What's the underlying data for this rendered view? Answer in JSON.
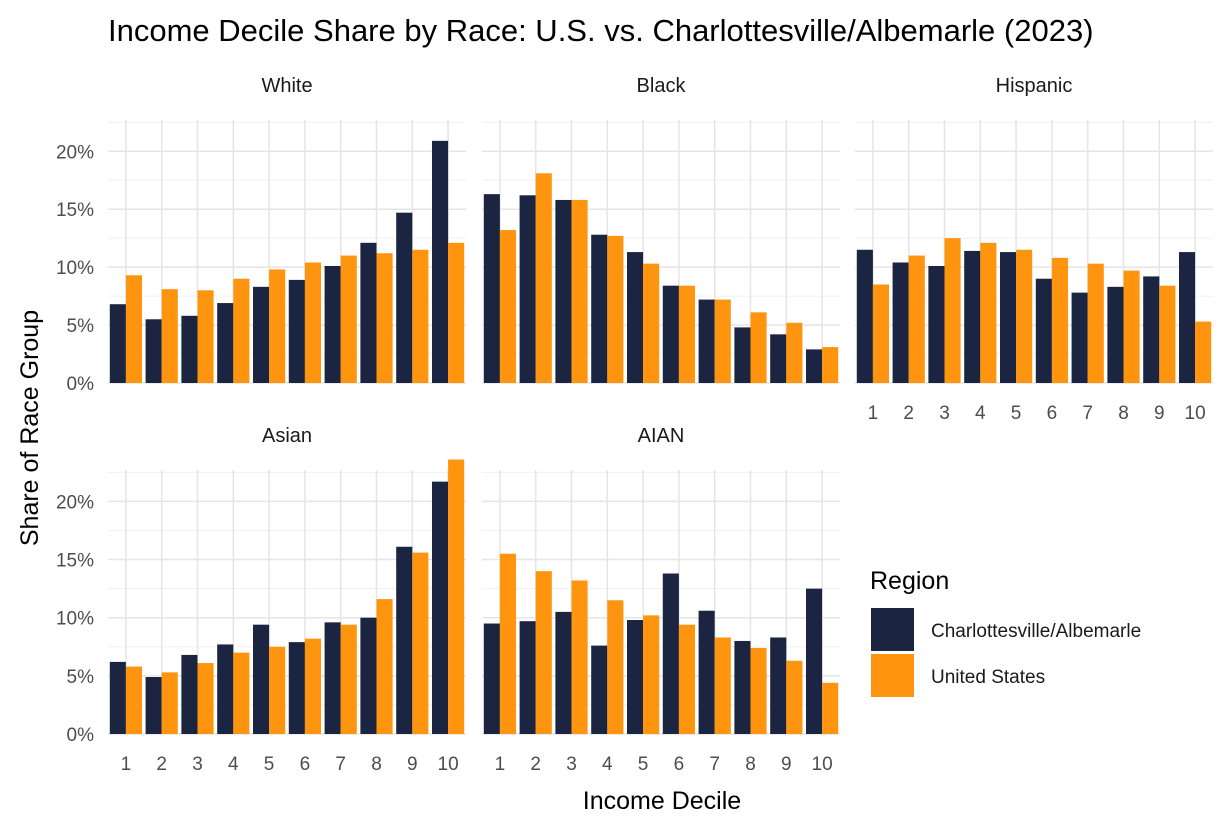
{
  "chart_data": {
    "type": "bar",
    "title": "Income Decile Share by Race: U.S. vs. Charlottesville/Albemarle (2023)",
    "xlabel": "Income Decile",
    "ylabel": "Share of Race Group",
    "categories": [
      "1",
      "2",
      "3",
      "4",
      "5",
      "6",
      "7",
      "8",
      "9",
      "10"
    ],
    "y_ticks": [
      "0%",
      "5%",
      "10%",
      "15%",
      "20%"
    ],
    "y_tick_values": [
      0,
      5,
      10,
      15,
      20
    ],
    "ylim": [
      0,
      22.7
    ],
    "grid": true,
    "legend": {
      "title": "Region",
      "position": "right",
      "entries": [
        {
          "label": "Charlottesville/Albemarle",
          "color": "#1b2440"
        },
        {
          "label": "United States",
          "color": "#ff950e"
        }
      ]
    },
    "panels": [
      {
        "name": "White",
        "series": [
          {
            "name": "Charlottesville/Albemarle",
            "values": [
              6.8,
              5.5,
              5.8,
              6.9,
              8.3,
              8.9,
              10.1,
              12.1,
              14.7,
              20.9
            ]
          },
          {
            "name": "United States",
            "values": [
              9.3,
              8.1,
              8.0,
              9.0,
              9.8,
              10.4,
              11.0,
              11.2,
              11.5,
              12.1
            ]
          }
        ]
      },
      {
        "name": "Black",
        "series": [
          {
            "name": "Charlottesville/Albemarle",
            "values": [
              16.3,
              16.2,
              15.8,
              12.8,
              11.3,
              8.4,
              7.2,
              4.8,
              4.2,
              2.9
            ]
          },
          {
            "name": "United States",
            "values": [
              13.2,
              18.1,
              15.8,
              12.7,
              10.3,
              8.4,
              7.2,
              6.1,
              5.2,
              3.1
            ]
          }
        ]
      },
      {
        "name": "Hispanic",
        "series": [
          {
            "name": "Charlottesville/Albemarle",
            "values": [
              11.5,
              10.4,
              10.1,
              11.4,
              11.3,
              9.0,
              7.8,
              8.3,
              9.2,
              11.3
            ]
          },
          {
            "name": "United States",
            "values": [
              8.5,
              11.0,
              12.5,
              12.1,
              11.5,
              10.8,
              10.3,
              9.7,
              8.4,
              5.3
            ]
          }
        ]
      },
      {
        "name": "Asian",
        "series": [
          {
            "name": "Charlottesville/Albemarle",
            "values": [
              6.2,
              4.9,
              6.8,
              7.7,
              9.4,
              7.9,
              9.6,
              10.0,
              16.1,
              21.7
            ]
          },
          {
            "name": "United States",
            "values": [
              5.8,
              5.3,
              6.1,
              7.0,
              7.5,
              8.2,
              9.4,
              11.6,
              15.6,
              23.6
            ]
          }
        ]
      },
      {
        "name": "AIAN",
        "series": [
          {
            "name": "Charlottesville/Albemarle",
            "values": [
              9.5,
              9.7,
              10.5,
              7.6,
              9.8,
              13.8,
              10.6,
              8.0,
              8.3,
              12.5
            ]
          },
          {
            "name": "United States",
            "values": [
              15.5,
              14.0,
              13.2,
              11.5,
              10.2,
              9.4,
              8.3,
              7.4,
              6.3,
              4.4
            ]
          }
        ]
      }
    ]
  }
}
